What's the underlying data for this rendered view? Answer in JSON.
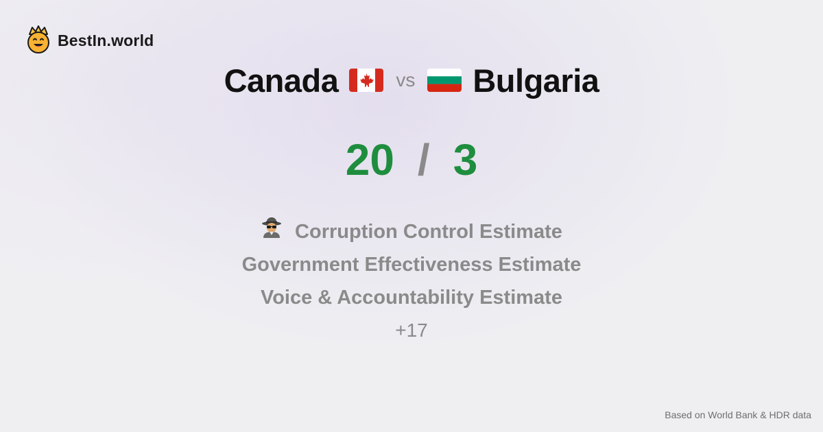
{
  "brand": {
    "name": "BestIn.world",
    "logo_icon": "crowned-smiley-icon"
  },
  "title": {
    "country_a": "Canada",
    "country_b": "Bulgaria",
    "vs": "vs",
    "flag_a": "canada-flag-icon",
    "flag_b": "bulgaria-flag-icon"
  },
  "score": {
    "a": "20",
    "separator": "/",
    "b": "3"
  },
  "metrics": {
    "items": [
      {
        "label": "Corruption Control Estimate",
        "icon": "spy-icon"
      },
      {
        "label": "Government Effectiveness Estimate"
      },
      {
        "label": "Voice & Accountability Estimate"
      }
    ],
    "more": "+17"
  },
  "footer": {
    "source": "Based on World Bank & HDR data"
  },
  "colors": {
    "score": "#1e8e3e",
    "muted": "#8a8a8a",
    "background": "#efeff2"
  }
}
